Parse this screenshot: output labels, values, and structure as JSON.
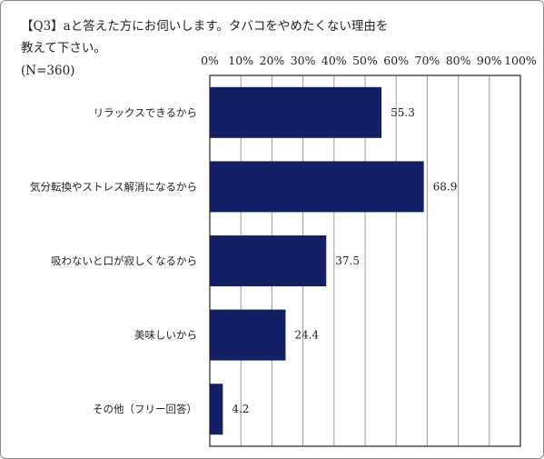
{
  "question": {
    "line1": "【Q3】aと答えた方にお伺いします。タバコをやめたくない理由を",
    "line2": "教えて下さい。",
    "n": "(N=360)"
  },
  "colors": {
    "bar": "#142066",
    "grid": "#9a9a9a",
    "axis": "#222222"
  },
  "chart_data": {
    "type": "bar",
    "orientation": "horizontal",
    "title": "【Q3】aと答えた方にお伺いします。タバコをやめたくない理由を教えて下さい。",
    "subtitle": "(N=360)",
    "categories": [
      "リラックスできるから",
      "気分転換やストレス解消になるから",
      "吸わないと口が寂しくなるから",
      "美味しいから",
      "その他（フリー回答）"
    ],
    "values": [
      55.3,
      68.9,
      37.5,
      24.4,
      4.2
    ],
    "value_labels": [
      "55.3",
      "68.9",
      "37.5",
      "24.4",
      "4.2"
    ],
    "xlim": [
      0,
      100
    ],
    "x_ticks": [
      0,
      10,
      20,
      30,
      40,
      50,
      60,
      70,
      80,
      90,
      100
    ],
    "x_tick_labels": [
      "0%",
      "10%",
      "20%",
      "30%",
      "40%",
      "50%",
      "60%",
      "70%",
      "80%",
      "90%",
      "100%"
    ],
    "x_axis_position": "top",
    "grid": true
  }
}
